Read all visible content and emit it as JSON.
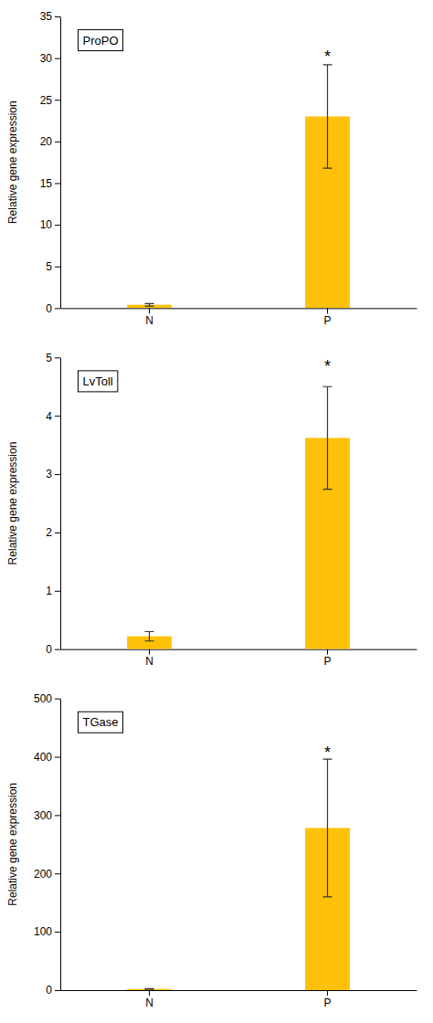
{
  "chart_data": [
    {
      "type": "bar",
      "title": "ProPO",
      "ylabel": "Relative gene expression",
      "categories": [
        "N",
        "P"
      ],
      "values": [
        0.4,
        23.0
      ],
      "errors": [
        0.15,
        6.2
      ],
      "color": "#FFC107",
      "ylim": [
        0,
        35
      ],
      "yticks": [
        0,
        5,
        10,
        15,
        20,
        25,
        30,
        35
      ],
      "annotations": [
        {
          "text": "*",
          "x": "P",
          "y": 29.5
        }
      ]
    },
    {
      "type": "bar",
      "title": "LvToll",
      "ylabel": "Relative gene expression",
      "categories": [
        "N",
        "P"
      ],
      "values": [
        0.22,
        3.62
      ],
      "errors": [
        0.08,
        0.88
      ],
      "color": "#FFC107",
      "ylim": [
        0,
        5
      ],
      "yticks": [
        0,
        1,
        2,
        3,
        4,
        5
      ],
      "annotations": [
        {
          "text": "*",
          "x": "P",
          "y": 4.75
        }
      ]
    },
    {
      "type": "bar",
      "title": "TGase",
      "ylabel": "Relative gene expression",
      "categories": [
        "N",
        "P"
      ],
      "values": [
        2.0,
        278.0
      ],
      "errors": [
        0.5,
        118.0
      ],
      "color": "#FFC107",
      "ylim": [
        0,
        500
      ],
      "yticks": [
        0,
        100,
        200,
        300,
        400,
        500
      ],
      "annotations": [
        {
          "text": "*",
          "x": "P",
          "y": 398
        }
      ]
    }
  ]
}
